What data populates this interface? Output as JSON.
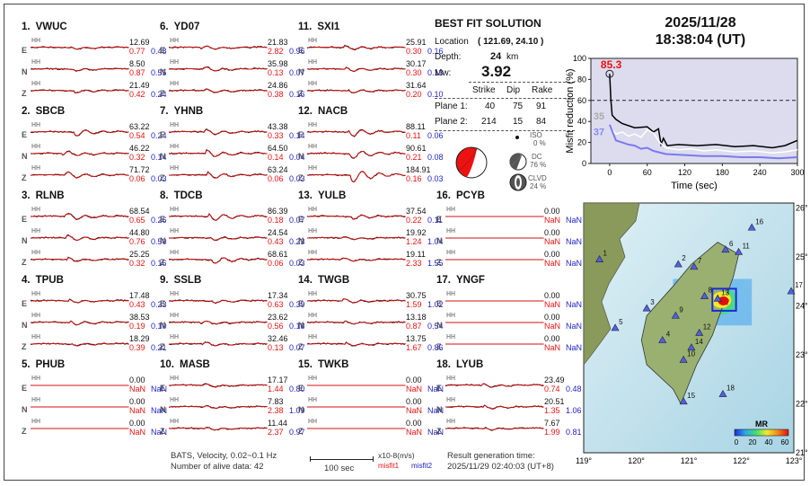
{
  "stations": [
    {
      "num": "1.",
      "name": "VWUC",
      "rows": [
        {
          "c": "E",
          "amp": "12.69",
          "m1": "0.77",
          "m2": "0.48"
        },
        {
          "c": "N",
          "amp": "8.50",
          "m1": "0.87",
          "m2": "0.55"
        },
        {
          "c": "Z",
          "amp": "21.49",
          "m1": "0.42",
          "m2": "0.24"
        }
      ]
    },
    {
      "num": "2.",
      "name": "SBCB",
      "rows": [
        {
          "c": "E",
          "amp": "63.22",
          "m1": "0.54",
          "m2": "0.24"
        },
        {
          "c": "N",
          "amp": "46.22",
          "m1": "0.32",
          "m2": "0.14"
        },
        {
          "c": "Z",
          "amp": "71.72",
          "m1": "0.06",
          "m2": "0.03"
        }
      ]
    },
    {
      "num": "3.",
      "name": "RLNB",
      "rows": [
        {
          "c": "E",
          "amp": "68.54",
          "m1": "0.65",
          "m2": "0.26"
        },
        {
          "c": "N",
          "amp": "44.80",
          "m1": "0.76",
          "m2": "0.50"
        },
        {
          "c": "Z",
          "amp": "25.25",
          "m1": "0.32",
          "m2": "0.16"
        }
      ]
    },
    {
      "num": "4.",
      "name": "TPUB",
      "rows": [
        {
          "c": "E",
          "amp": "17.48",
          "m1": "0.43",
          "m2": "0.23"
        },
        {
          "c": "N",
          "amp": "38.53",
          "m1": "0.19",
          "m2": "0.10"
        },
        {
          "c": "Z",
          "amp": "18.29",
          "m1": "0.39",
          "m2": "0.21"
        }
      ]
    },
    {
      "num": "5.",
      "name": "PHUB",
      "rows": [
        {
          "c": "E",
          "amp": "0.00",
          "m1": "NaN",
          "m2": "NaN"
        },
        {
          "c": "N",
          "amp": "0.00",
          "m1": "NaN",
          "m2": "NaN"
        },
        {
          "c": "Z",
          "amp": "0.00",
          "m1": "NaN",
          "m2": "NaN"
        }
      ]
    },
    {
      "num": "6.",
      "name": "YD07",
      "rows": [
        {
          "c": "E",
          "amp": "21.83",
          "m1": "2.82",
          "m2": "0.96"
        },
        {
          "c": "N",
          "amp": "35.98",
          "m1": "0.13",
          "m2": "0.07"
        },
        {
          "c": "Z",
          "amp": "24.86",
          "m1": "0.38",
          "m2": "0.16"
        }
      ]
    },
    {
      "num": "7.",
      "name": "YHNB",
      "rows": [
        {
          "c": "E",
          "amp": "43.38",
          "m1": "0.33",
          "m2": "0.14"
        },
        {
          "c": "N",
          "amp": "64.50",
          "m1": "0.14",
          "m2": "0.04"
        },
        {
          "c": "Z",
          "amp": "63.24",
          "m1": "0.06",
          "m2": "0.03"
        }
      ]
    },
    {
      "num": "8.",
      "name": "TDCB",
      "rows": [
        {
          "c": "E",
          "amp": "86.39",
          "m1": "0.18",
          "m2": "0.07"
        },
        {
          "c": "N",
          "amp": "24.54",
          "m1": "0.43",
          "m2": "0.23"
        },
        {
          "c": "Z",
          "amp": "68.61",
          "m1": "0.06",
          "m2": "0.03"
        }
      ]
    },
    {
      "num": "9.",
      "name": "SSLB",
      "rows": [
        {
          "c": "E",
          "amp": "17.34",
          "m1": "0.63",
          "m2": "0.39"
        },
        {
          "c": "N",
          "amp": "23.62",
          "m1": "0.56",
          "m2": "0.18"
        },
        {
          "c": "Z",
          "amp": "32.46",
          "m1": "0.13",
          "m2": "0.07"
        }
      ]
    },
    {
      "num": "10.",
      "name": "MASB",
      "rows": [
        {
          "c": "E",
          "amp": "17.17",
          "m1": "1.44",
          "m2": "0.80"
        },
        {
          "c": "N",
          "amp": "7.83",
          "m1": "2.38",
          "m2": "1.09"
        },
        {
          "c": "Z",
          "amp": "11.44",
          "m1": "2.37",
          "m2": "0.97"
        }
      ]
    },
    {
      "num": "11.",
      "name": "SXI1",
      "rows": [
        {
          "c": "E",
          "amp": "25.91",
          "m1": "0.30",
          "m2": "0.16"
        },
        {
          "c": "N",
          "amp": "30.17",
          "m1": "0.30",
          "m2": "0.13"
        },
        {
          "c": "Z",
          "amp": "31.64",
          "m1": "0.20",
          "m2": "0.10"
        }
      ]
    },
    {
      "num": "12.",
      "name": "NACB",
      "rows": [
        {
          "c": "E",
          "amp": "88.11",
          "m1": "0.11",
          "m2": "0.06"
        },
        {
          "c": "N",
          "amp": "90.61",
          "m1": "0.21",
          "m2": "0.08"
        },
        {
          "c": "Z",
          "amp": "184.91",
          "m1": "0.16",
          "m2": "0.03"
        }
      ]
    },
    {
      "num": "13.",
      "name": "YULB",
      "rows": [
        {
          "c": "E",
          "amp": "37.54",
          "m1": "0.22",
          "m2": "0.11"
        },
        {
          "c": "N",
          "amp": "19.92",
          "m1": "1.24",
          "m2": "1.04"
        },
        {
          "c": "Z",
          "amp": "19.11",
          "m1": "2.33",
          "m2": "1.55"
        }
      ]
    },
    {
      "num": "14.",
      "name": "TWGB",
      "rows": [
        {
          "c": "E",
          "amp": "30.75",
          "m1": "1.59",
          "m2": "1.02"
        },
        {
          "c": "N",
          "amp": "13.18",
          "m1": "0.87",
          "m2": "0.54"
        },
        {
          "c": "Z",
          "amp": "13.75",
          "m1": "1.67",
          "m2": "0.86"
        }
      ]
    },
    {
      "num": "15.",
      "name": "TWKB",
      "rows": [
        {
          "c": "E",
          "amp": "0.00",
          "m1": "NaN",
          "m2": "NaN"
        },
        {
          "c": "N",
          "amp": "0.00",
          "m1": "NaN",
          "m2": "NaN"
        },
        {
          "c": "Z",
          "amp": "0.00",
          "m1": "NaN",
          "m2": "NaN"
        }
      ]
    },
    {
      "num": "16.",
      "name": "PCYB",
      "rows": [
        {
          "c": "E",
          "amp": "0.00",
          "m1": "NaN",
          "m2": "NaN"
        },
        {
          "c": "N",
          "amp": "0.00",
          "m1": "NaN",
          "m2": "NaN"
        },
        {
          "c": "Z",
          "amp": "0.00",
          "m1": "NaN",
          "m2": "NaN"
        }
      ]
    },
    {
      "num": "17.",
      "name": "YNGF",
      "rows": [
        {
          "c": "E",
          "amp": "0.00",
          "m1": "NaN",
          "m2": "NaN"
        },
        {
          "c": "N",
          "amp": "0.00",
          "m1": "NaN",
          "m2": "NaN"
        },
        {
          "c": "Z",
          "amp": "0.00",
          "m1": "NaN",
          "m2": "NaN"
        }
      ]
    },
    {
      "num": "18.",
      "name": "LYUB",
      "rows": [
        {
          "c": "E",
          "amp": "23.49",
          "m1": "0.74",
          "m2": "0.48"
        },
        {
          "c": "N",
          "amp": "20.51",
          "m1": "1.35",
          "m2": "1.06"
        },
        {
          "c": "Z",
          "amp": "7.67",
          "m1": "1.99",
          "m2": "0.81"
        }
      ]
    }
  ],
  "channel_label": "HH",
  "solution": {
    "heading": "BEST FIT SOLUTION",
    "location_label": "Location",
    "location_value": "( 121.69, 24.10 )",
    "depth_label": "Depth:",
    "depth_value": "24",
    "depth_unit": "km",
    "mw_label": "Mw:",
    "mw_value": "3.92",
    "columns": [
      "Strike",
      "Dip",
      "Rake"
    ],
    "plane1_label": "Plane 1:",
    "plane1": [
      "40",
      "75",
      "91"
    ],
    "plane2_label": "Plane 2:",
    "plane2": [
      "214",
      "15",
      "84"
    ],
    "iso_label": "ISO",
    "iso_value": "0 %",
    "dc_label": "DC",
    "dc_value": "76 %",
    "clvd_label": "CLVD",
    "clvd_value": "24 %"
  },
  "datetime": {
    "date": "2025/11/28",
    "time": "18:38:04  (UT)"
  },
  "chart_data": {
    "type": "line",
    "xlabel": "Time (sec)",
    "ylabel": "Misfit reduction (%)",
    "xlim": [
      -30,
      300
    ],
    "ylim": [
      0,
      100
    ],
    "xticks": [
      "0",
      "60",
      "120",
      "180",
      "240",
      "300"
    ],
    "yticks": [
      "0",
      "20",
      "40",
      "60",
      "80",
      "100"
    ],
    "reference_line": 60,
    "annotations": {
      "peak": "85.3",
      "white_start": "35",
      "blue_start": "37"
    },
    "peak_point": {
      "x": 0,
      "y": 85.3
    },
    "series": [
      {
        "color": "#000000",
        "points": [
          [
            0,
            85.3
          ],
          [
            2,
            60
          ],
          [
            4,
            46
          ],
          [
            10,
            42
          ],
          [
            20,
            38
          ],
          [
            40,
            34
          ],
          [
            60,
            35
          ],
          [
            70,
            30
          ],
          [
            78,
            33
          ],
          [
            82,
            18
          ],
          [
            86,
            24
          ],
          [
            92,
            17
          ],
          [
            110,
            18
          ],
          [
            140,
            17
          ],
          [
            170,
            18
          ],
          [
            200,
            16
          ],
          [
            230,
            17
          ],
          [
            260,
            15
          ],
          [
            280,
            17
          ],
          [
            300,
            22
          ]
        ]
      },
      {
        "color": "#ffffff",
        "points": [
          [
            0,
            35
          ],
          [
            10,
            28
          ],
          [
            20,
            30
          ],
          [
            30,
            26
          ],
          [
            40,
            28
          ],
          [
            50,
            25
          ],
          [
            60,
            32
          ],
          [
            70,
            29
          ],
          [
            80,
            20
          ],
          [
            90,
            15
          ],
          [
            110,
            13
          ],
          [
            130,
            14
          ],
          [
            150,
            12
          ],
          [
            170,
            13
          ],
          [
            200,
            11
          ],
          [
            230,
            12
          ],
          [
            260,
            10
          ],
          [
            280,
            11
          ],
          [
            300,
            13
          ]
        ]
      },
      {
        "color": "#7a7af0",
        "points": [
          [
            0,
            37
          ],
          [
            10,
            22
          ],
          [
            20,
            20
          ],
          [
            30,
            18
          ],
          [
            40,
            17
          ],
          [
            50,
            14
          ],
          [
            60,
            15
          ],
          [
            70,
            12
          ],
          [
            90,
            9
          ],
          [
            120,
            8
          ],
          [
            150,
            7
          ],
          [
            180,
            7
          ],
          [
            210,
            6
          ],
          [
            240,
            6
          ],
          [
            270,
            5
          ],
          [
            300,
            6
          ]
        ]
      }
    ]
  },
  "map": {
    "lon_labels": [
      "119°",
      "120°",
      "121°",
      "122°",
      "123°"
    ],
    "lat_labels": [
      "26°",
      "25°",
      "24°",
      "23°",
      "22°",
      "21°"
    ],
    "station_numbers": [
      "1",
      "2",
      "3",
      "4",
      "5",
      "6",
      "7",
      "8",
      "9",
      "10",
      "11",
      "12",
      "13",
      "14",
      "15",
      "16",
      "17",
      "18"
    ],
    "colorbar_label": "MR",
    "colorbar_ticks": [
      "0",
      "20",
      "40",
      "60"
    ]
  },
  "footer": {
    "network": "BATS, Velocity, 0.02~0.1 Hz",
    "alive": "Number of alive data: 42",
    "scale": "100 sec",
    "unit": "x10-8(m/s)",
    "misfit1": "misfit1",
    "misfit2": "misfit2",
    "result_label": "Result generation time:",
    "result_time": "2025/11/29 02:40:03 (UT+8)"
  },
  "colors": {
    "synthetic": "#d01010",
    "observed": "#111111",
    "misfit1": "#e11111",
    "misfit2": "#2222cc",
    "chart_bg": "#dcdcee"
  }
}
